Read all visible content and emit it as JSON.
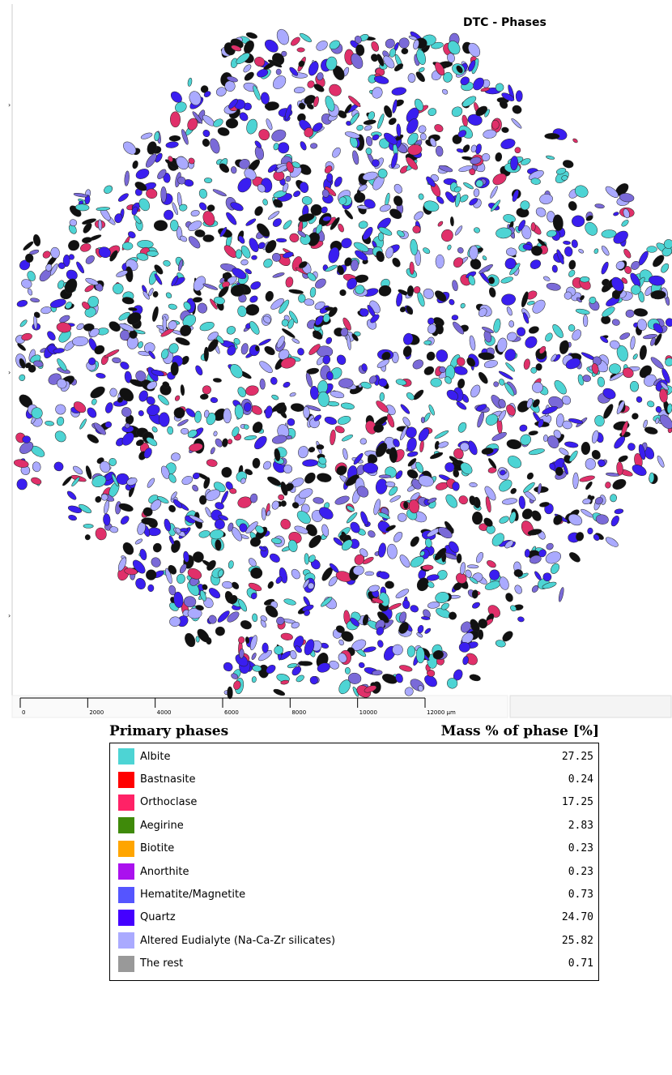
{
  "header": {
    "title": "DTC - Phases"
  },
  "scale_bar": {
    "ticks": [
      0,
      2000,
      4000,
      6000,
      8000,
      10000,
      {
        "value": 12000,
        "label": "12000 μm"
      }
    ]
  },
  "table": {
    "headers": [
      "Primary phases",
      "Mass % of phase [%]"
    ],
    "rows": [
      {
        "name": "Albite",
        "color": "#4dd4d4",
        "value": "27.25"
      },
      {
        "name": "Bastnasite",
        "color": "#ff0000",
        "value": "0.24"
      },
      {
        "name": "Orthoclase",
        "color": "#ff2266",
        "value": "17.25"
      },
      {
        "name": "Aegirine",
        "color": "#3f8a0a",
        "value": "2.83"
      },
      {
        "name": "Biotite",
        "color": "#ffa500",
        "value": "0.23"
      },
      {
        "name": "Anorthite",
        "color": "#aa11ee",
        "value": "0.23"
      },
      {
        "name": "Hematite/Magnetite",
        "color": "#5555ff",
        "value": "0.73"
      },
      {
        "name": "Quartz",
        "color": "#4400ff",
        "value": "24.70"
      },
      {
        "name": "Altered Eudialyte (Na-Ca-Zr silicates)",
        "color": "#aaaaff",
        "value": "25.82"
      },
      {
        "name": "The rest",
        "color": "#999999",
        "value": "0.71"
      }
    ]
  }
}
